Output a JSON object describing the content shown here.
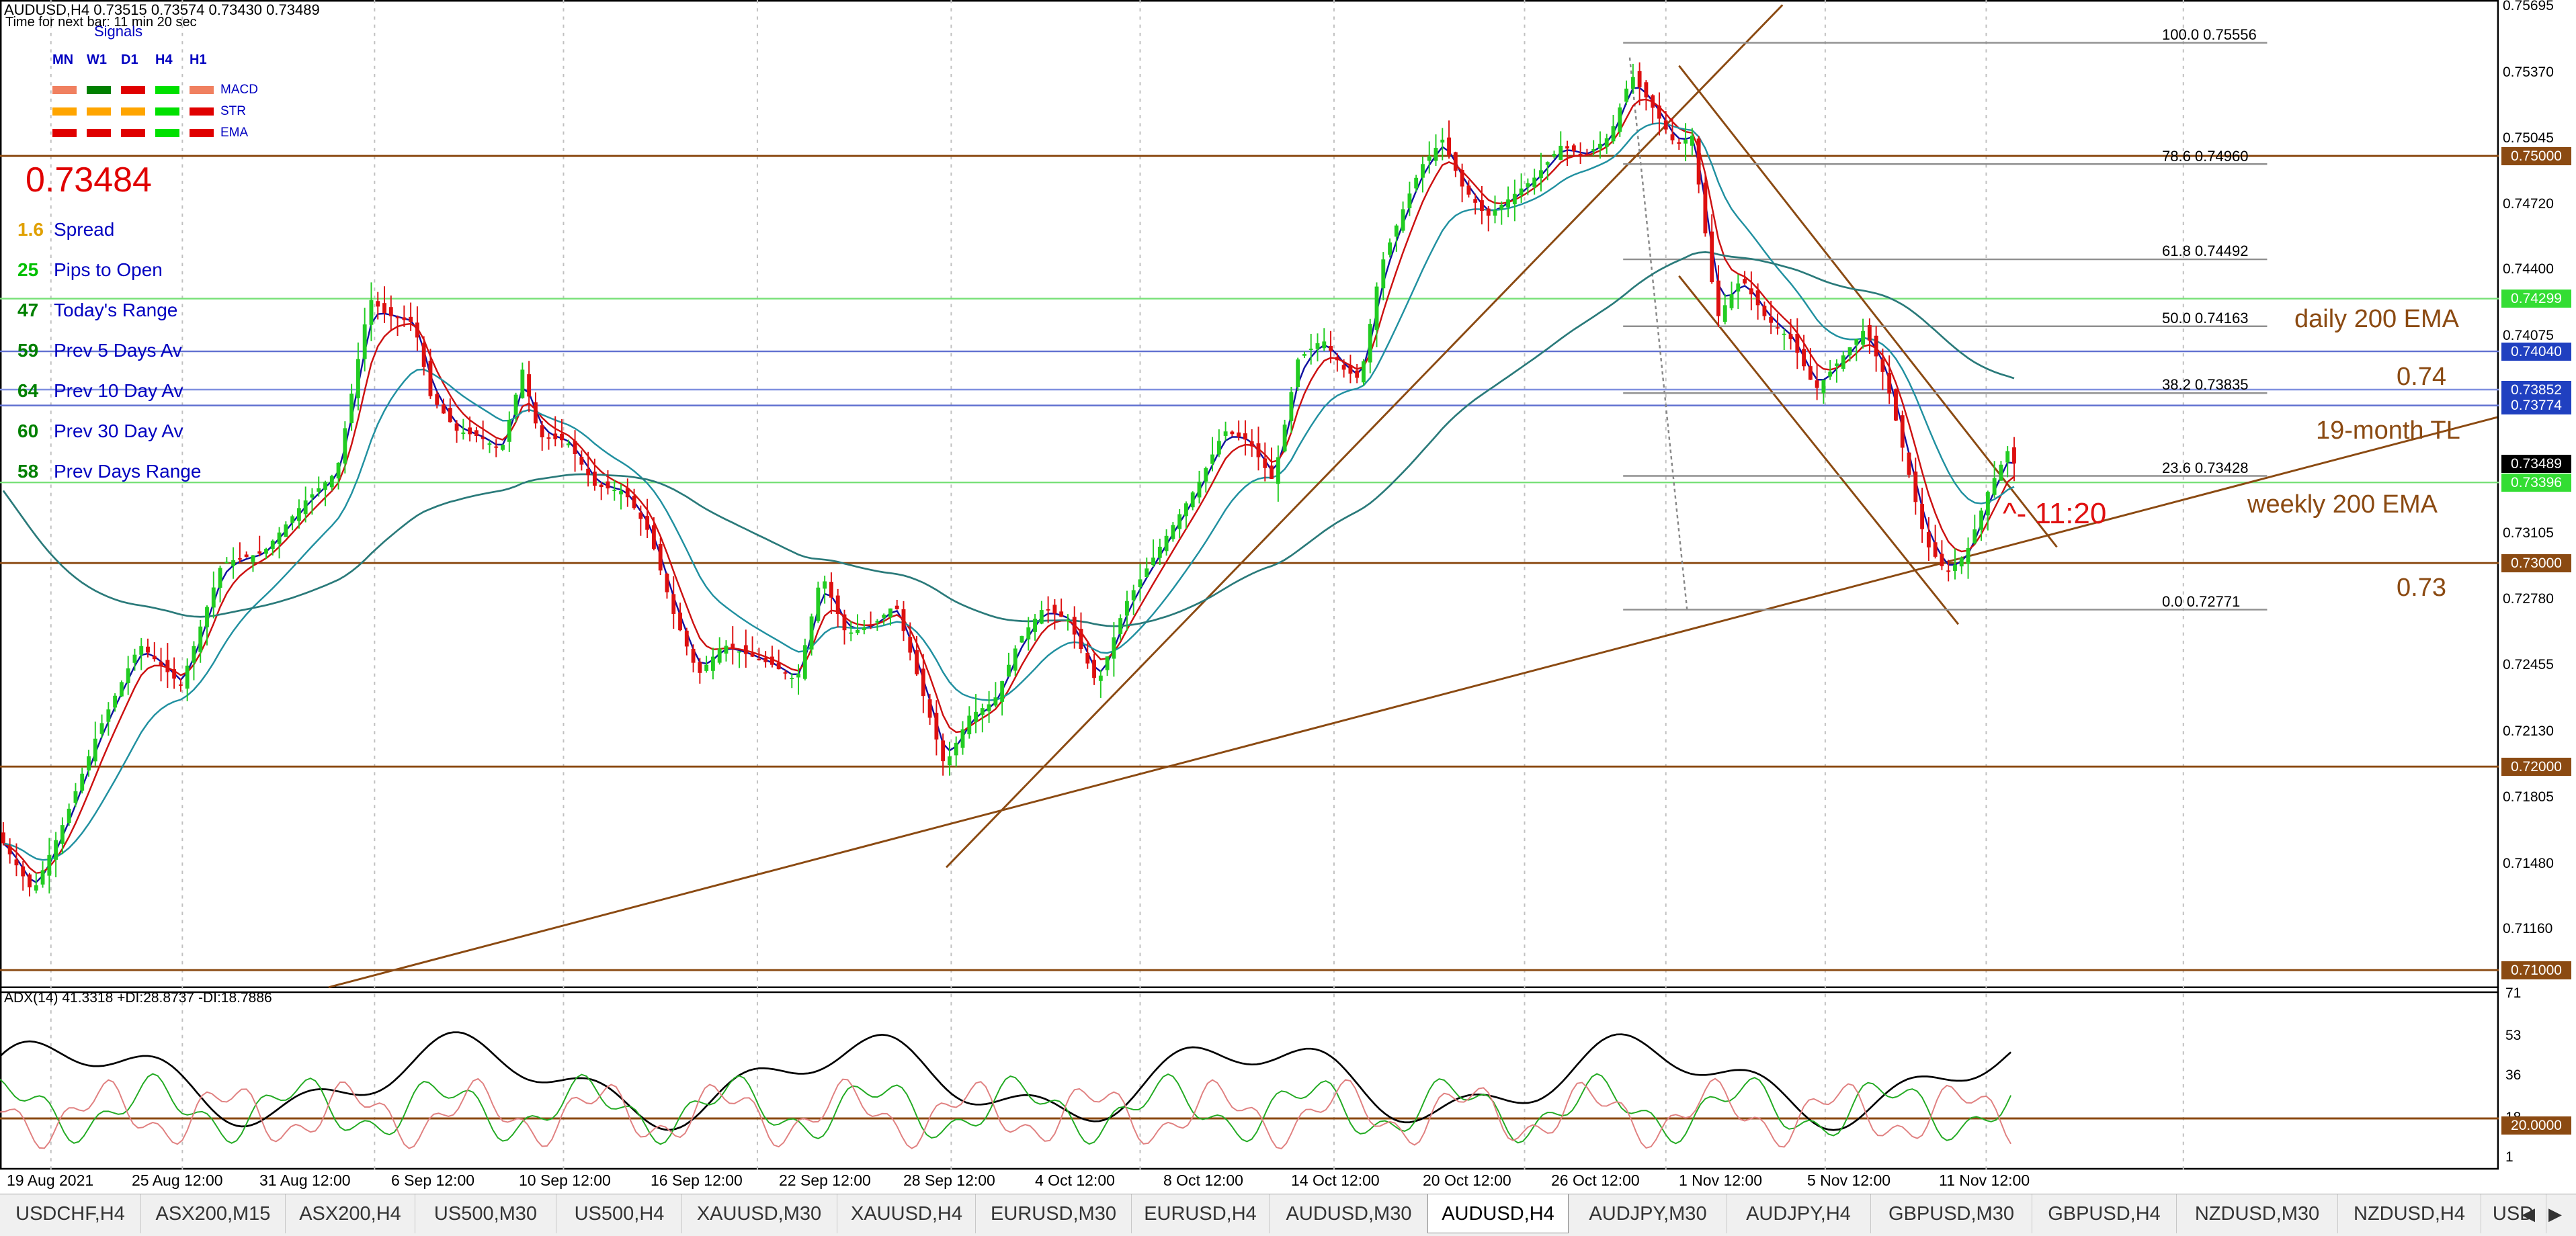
{
  "header": {
    "title": "AUDUSD,H4  0.73515 0.73574 0.73430 0.73489",
    "timer": "Time for next bar: 11 min 20 sec"
  },
  "signals": {
    "title": "Signals",
    "timeframes": [
      "MN",
      "W1",
      "D1",
      "H4",
      "H1"
    ],
    "rows": [
      {
        "name": "MACD",
        "colors": [
          "#f08060",
          "#008000",
          "#e00000",
          "#00e000",
          "#f08060"
        ]
      },
      {
        "name": "STR",
        "colors": [
          "#ffa500",
          "#ffa500",
          "#ffa500",
          "#00e000",
          "#e00000"
        ]
      },
      {
        "name": "EMA",
        "colors": [
          "#e00000",
          "#e00000",
          "#e00000",
          "#00e000",
          "#e00000"
        ]
      }
    ]
  },
  "price_display": "0.73484",
  "stats": [
    {
      "value": "1.6",
      "label": "Spread",
      "color": "#e0a000"
    },
    {
      "value": "25",
      "label": "Pips to Open",
      "color": "#00c000"
    },
    {
      "value": "47",
      "label": "Today's Range",
      "color": "#008000"
    },
    {
      "value": "59",
      "label": "Prev 5 Days Av",
      "color": "#008000"
    },
    {
      "value": "64",
      "label": "Prev 10 Day Av",
      "color": "#008000"
    },
    {
      "value": "60",
      "label": "Prev 30 Day Av",
      "color": "#008000"
    },
    {
      "value": "58",
      "label": "Prev Days Range",
      "color": "#008000"
    }
  ],
  "annotations": {
    "daily_ema": "daily 200 EMA",
    "level_074": "0.74",
    "trendline": "19-month TL",
    "weekly_ema": "weekly 200 EMA",
    "level_073": "0.73",
    "timer_note": "^- 11:20"
  },
  "fib_levels": [
    {
      "label": "100.0   0.75556",
      "price": 0.75556
    },
    {
      "label": "78.6   0.74960",
      "price": 0.7496
    },
    {
      "label": "61.8   0.74492",
      "price": 0.74492
    },
    {
      "label": "50.0   0.74163",
      "price": 0.74163
    },
    {
      "label": "38.2   0.73835",
      "price": 0.73835
    },
    {
      "label": "23.6   0.73428",
      "price": 0.73428
    },
    {
      "label": "0.0   0.72771",
      "price": 0.72771
    }
  ],
  "price_axis": [
    "0.75695",
    "0.75370",
    "0.75045",
    "0.74720",
    "0.74400",
    "0.74075",
    "0.73750",
    "0.73425",
    "0.73105",
    "0.72780",
    "0.72455",
    "0.72130",
    "0.71805",
    "0.71480",
    "0.71160"
  ],
  "price_tags": [
    {
      "label": "0.75000",
      "price": 0.75,
      "color": "#8b4a12"
    },
    {
      "label": "0.74299",
      "price": 0.74299,
      "color": "#33dd33"
    },
    {
      "label": "0.74040",
      "price": 0.7404,
      "color": "#2040c0"
    },
    {
      "label": "0.73852",
      "price": 0.73852,
      "color": "#2040c0"
    },
    {
      "label": "0.73774",
      "price": 0.73774,
      "color": "#2040c0"
    },
    {
      "label": "0.73489",
      "price": 0.73489,
      "color": "#000000"
    },
    {
      "label": "0.73396",
      "price": 0.73396,
      "color": "#33dd33"
    },
    {
      "label": "0.73000",
      "price": 0.73,
      "color": "#8b4a12"
    },
    {
      "label": "0.72000",
      "price": 0.72,
      "color": "#8b4a12"
    },
    {
      "label": "0.71000",
      "price": 0.71,
      "color": "#8b4a12"
    }
  ],
  "indicator": {
    "title": "ADX(14) 41.3318 +DI:28.8737 -DI:18.7886",
    "axis": [
      "71",
      "53",
      "36",
      "18",
      "1"
    ],
    "level_tag": "20.0000"
  },
  "dates": [
    "19 Aug 2021",
    "25 Aug 12:00",
    "31 Aug 12:00",
    "6 Sep 12:00",
    "10 Sep 12:00",
    "16 Sep 12:00",
    "22 Sep 12:00",
    "28 Sep 12:00",
    "4 Oct 12:00",
    "8 Oct 12:00",
    "14 Oct 12:00",
    "20 Oct 12:00",
    "26 Oct 12:00",
    "1 Nov 12:00",
    "5 Nov 12:00",
    "11 Nov 12:00"
  ],
  "tabs": [
    "USDCHF,H4",
    "ASX200,M15",
    "ASX200,H4",
    "US500,M30",
    "US500,H4",
    "XAUUSD,M30",
    "XAUUSD,H4",
    "EURUSD,M30",
    "EURUSD,H4",
    "AUDUSD,M30",
    "AUDUSD,H4",
    "AUDJPY,M30",
    "AUDJPY,H4",
    "GBPUSD,M30",
    "GBPUSD,H4",
    "NZDUSD,M30",
    "NZDUSD,H4",
    "USD"
  ],
  "active_tab": "AUDUSD,H4",
  "chart_data": {
    "type": "candlestick",
    "symbol": "AUDUSD",
    "timeframe": "H4",
    "ylim": [
      0.7094,
      0.7575
    ],
    "close_path": [
      [
        0,
        0.7165
      ],
      [
        20,
        0.7138
      ],
      [
        40,
        0.7175
      ],
      [
        60,
        0.7218
      ],
      [
        85,
        0.726
      ],
      [
        110,
        0.724
      ],
      [
        135,
        0.73
      ],
      [
        160,
        0.7305
      ],
      [
        185,
        0.733
      ],
      [
        205,
        0.7345
      ],
      [
        225,
        0.743
      ],
      [
        235,
        0.7422
      ],
      [
        252,
        0.7418
      ],
      [
        262,
        0.7382
      ],
      [
        278,
        0.7365
      ],
      [
        292,
        0.7362
      ],
      [
        305,
        0.7355
      ],
      [
        318,
        0.7395
      ],
      [
        328,
        0.7362
      ],
      [
        345,
        0.736
      ],
      [
        362,
        0.7338
      ],
      [
        380,
        0.7335
      ],
      [
        395,
        0.7315
      ],
      [
        410,
        0.7275
      ],
      [
        425,
        0.7245
      ],
      [
        440,
        0.726
      ],
      [
        455,
        0.7255
      ],
      [
        470,
        0.725
      ],
      [
        485,
        0.7242
      ],
      [
        500,
        0.7295
      ],
      [
        515,
        0.7265
      ],
      [
        532,
        0.727
      ],
      [
        545,
        0.728
      ],
      [
        560,
        0.724
      ],
      [
        575,
        0.72
      ],
      [
        590,
        0.7225
      ],
      [
        605,
        0.7232
      ],
      [
        620,
        0.7262
      ],
      [
        635,
        0.7278
      ],
      [
        650,
        0.7272
      ],
      [
        668,
        0.724
      ],
      [
        685,
        0.728
      ],
      [
        700,
        0.73
      ],
      [
        715,
        0.732
      ],
      [
        730,
        0.734
      ],
      [
        745,
        0.7365
      ],
      [
        760,
        0.736
      ],
      [
        775,
        0.734
      ],
      [
        790,
        0.74
      ],
      [
        805,
        0.741
      ],
      [
        818,
        0.7395
      ],
      [
        828,
        0.739
      ],
      [
        840,
        0.7445
      ],
      [
        852,
        0.747
      ],
      [
        865,
        0.7495
      ],
      [
        878,
        0.7508
      ],
      [
        890,
        0.7485
      ],
      [
        905,
        0.747
      ],
      [
        920,
        0.748
      ],
      [
        935,
        0.749
      ],
      [
        950,
        0.7505
      ],
      [
        965,
        0.75
      ],
      [
        980,
        0.751
      ],
      [
        993,
        0.754
      ],
      [
        1005,
        0.7525
      ],
      [
        1020,
        0.7505
      ],
      [
        1030,
        0.751
      ],
      [
        1045,
        0.742
      ],
      [
        1060,
        0.744
      ],
      [
        1075,
        0.742
      ],
      [
        1090,
        0.741
      ],
      [
        1105,
        0.7385
      ],
      [
        1120,
        0.74
      ],
      [
        1135,
        0.7415
      ],
      [
        1148,
        0.739
      ],
      [
        1160,
        0.735
      ],
      [
        1172,
        0.731
      ],
      [
        1185,
        0.7295
      ],
      [
        1197,
        0.7305
      ],
      [
        1210,
        0.7335
      ],
      [
        1222,
        0.7355
      ],
      [
        1226,
        0.73489
      ]
    ],
    "moving_averages": [
      {
        "name": "daily 200 EMA",
        "value": 0.74299
      },
      {
        "name": "weekly 200 EMA",
        "value": 0.73396
      }
    ],
    "horizontal_levels": [
      0.75,
      0.73,
      0.72,
      0.71,
      0.7404,
      0.73852,
      0.73774
    ],
    "fib_range": [
      0.72771,
      0.75556
    ],
    "indicator_series": {
      "name": "ADX(14)",
      "adx": 41.3318,
      "plus_di": 28.8737,
      "minus_di": 18.7886,
      "level": 20
    }
  }
}
